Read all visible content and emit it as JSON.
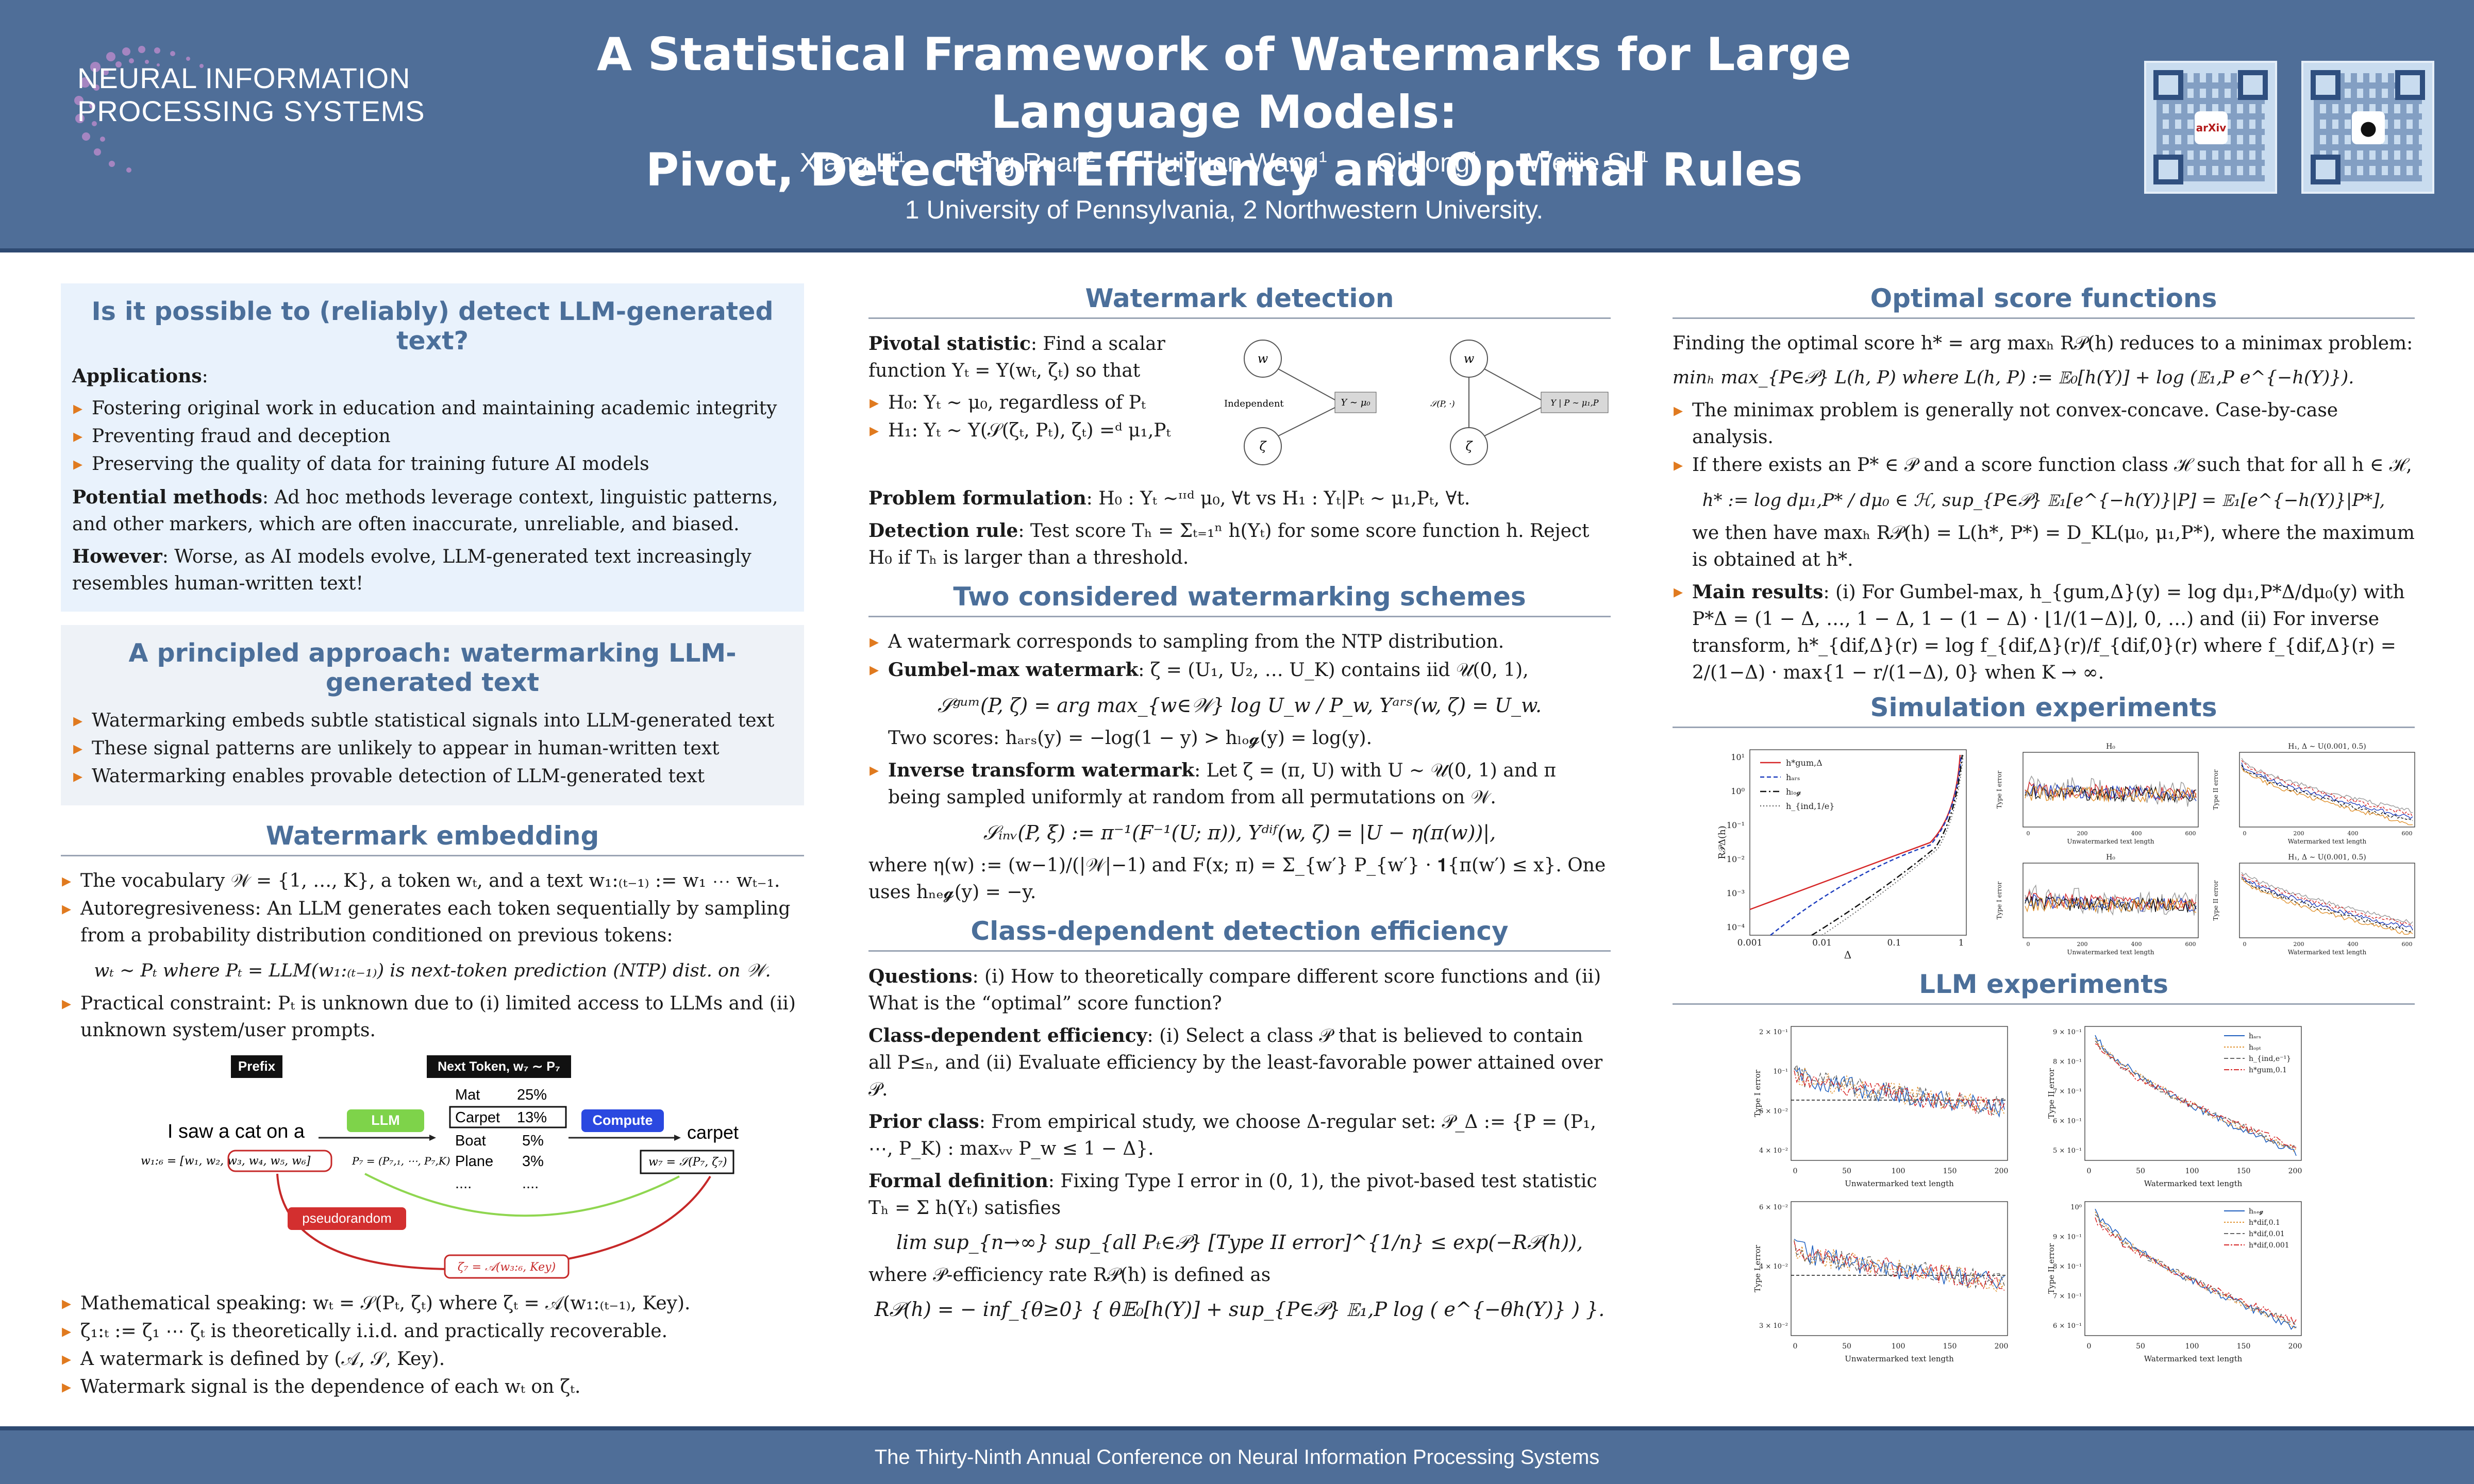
{
  "header": {
    "logo_line1": "NEURAL INFORMATION",
    "logo_line2": "PROCESSING SYSTEMS",
    "title_line1": "A Statistical Framework of Watermarks for Large Language Models:",
    "title_line2": "Pivot, Detection Efficiency and Optimal Rules",
    "authors": [
      {
        "name": "Xiang Li",
        "aff": "1"
      },
      {
        "name": "Feng Ruan",
        "aff": "2"
      },
      {
        "name": "Huiyuan Wang",
        "aff": "1"
      },
      {
        "name": "Qi Long",
        "aff": "1"
      },
      {
        "name": "Weijie Su",
        "aff": "1"
      }
    ],
    "affiliations": "1 University of Pennsylvania, 2 Northwestern University.",
    "qr_arxiv_label": "arXiv",
    "qr_github_label": "GitHub"
  },
  "col1": {
    "box1_title": "Is it possible to (reliably) detect LLM-generated text?",
    "applications_label": "Applications",
    "applications": [
      "Fostering original work in education and maintaining academic integrity",
      "Preventing fraud and deception",
      "Preserving the quality of data for training future AI models"
    ],
    "potential_label": "Potential methods",
    "potential_text": ": Ad hoc methods leverage context, linguistic patterns, and other markers, which are often inaccurate, unreliable, and biased.",
    "however_label": "However",
    "however_text": ": Worse, as AI models evolve, LLM-generated text increasingly resembles human-written text!",
    "box2_title": "A principled approach: watermarking LLM-generated text",
    "principled": [
      "Watermarking embeds subtle statistical signals into LLM-generated text",
      "These signal patterns are unlikely to appear in human-written text",
      "Watermarking enables provable detection of LLM-generated text"
    ],
    "embed_title": "Watermark embedding",
    "embed_items": [
      "The vocabulary 𝒲 = {1, …, K}, a token wₜ, and a text w₁:₍ₜ₋₁₎ := w₁ ⋯ wₜ₋₁.",
      "Autoregresiveness: An LLM generates each token sequentially by sampling from a probability distribution conditioned on previous tokens:",
      "Practical constraint: Pₜ is unknown due to (i) limited access to LLMs and (ii) unknown system/user prompts."
    ],
    "embed_eq": "wₜ ∼ Pₜ  where  Pₜ = LLM(w₁:₍ₜ₋₁₎) is next-token prediction (NTP) dist. on 𝒲.",
    "diagram": {
      "prefix": "Prefix",
      "next_token": "Next Token, w₇ ∼ P₇",
      "sentence": "I saw a cat on a",
      "llm": "LLM",
      "compute": "Compute",
      "output": "carpet",
      "pseudorandom": "pseudorandom",
      "tokens": [
        "Mat",
        "Carpet",
        "Boat",
        "Plane",
        "...."
      ],
      "probs": [
        "25%",
        "13%",
        "5%",
        "3%",
        "...."
      ],
      "context": "w₁:₆ = [w₁, w₂, w₃, w₄, w₅, w₆]",
      "ptext": "P₇ = (P₇,₁, ⋯, P₇,K)",
      "wformula": "w₇ = 𝒮(P₇, ζ₇)",
      "zeta": "ζ₇ = 𝒜(w₃:₆, Key)"
    },
    "math_items": [
      "Mathematical speaking: wₜ = 𝒮(Pₜ, ζₜ) where ζₜ = 𝒜(w₁:₍ₜ₋₁₎, Key).",
      "ζ₁:ₜ := ζ₁ ⋯ ζₜ is theoretically i.i.d. and practically recoverable.",
      "A watermark is defined by (𝒜, 𝒮, Key).",
      "Watermark signal is the dependence of each wₜ on ζₜ."
    ]
  },
  "col2": {
    "detect_title": "Watermark detection",
    "pivotal_label": "Pivotal statistic",
    "pivotal_text": ": Find a scalar function Yₜ = Y(wₜ, ζₜ) so that",
    "h0": "H₀: Yₜ ∼ μ₀, regardless of Pₜ",
    "h1": "H₁: Yₜ ∼ Y(𝒮(ζₜ, Pₜ), ζₜ) =ᵈ μ₁,Pₜ",
    "graph_independent": "Independent",
    "graph_y0": "Y ∼ μ₀",
    "graph_y1": "Y | P ∼ μ₁,P",
    "graph_s": "𝒮(P, ·)",
    "graph_w": "w",
    "graph_z": "ζ",
    "problem_label": "Problem formulation",
    "problem_text": ": H₀ : Yₜ ∼ᶦᶦᵈ μ₀, ∀t vs H₁ : Yₜ|Pₜ ∼ μ₁,Pₜ, ∀t.",
    "rule_label": "Detection rule",
    "rule_text": ": Test score Tₕ = Σₜ₌₁ⁿ h(Yₜ) for some score function h. Reject H₀ if Tₕ is larger than a threshold.",
    "schemes_title": "Two considered watermarking schemes",
    "schemes_intro": "A watermark corresponds to sampling from the NTP distribution.",
    "gumbel_label": "Gumbel-max watermark",
    "gumbel_text": ": ζ = (U₁, U₂, … U_K) contains iid 𝒰(0, 1),",
    "gumbel_eq": "𝒮ᵍᵘᵐ(P, ζ) = arg max_{w∈𝒲} log U_w / P_w,   Yᵃʳˢ(w, ζ) = U_w.",
    "two_scores": "Two scores:  hₐᵣₛ(y) = −log(1 − y) > hₗₒ𝓰(y) = log(y).",
    "inverse_label": "Inverse transform watermark",
    "inverse_text": ": Let ζ = (π, U) with U ∼ 𝒰(0, 1) and π being sampled uniformly at random from all permutations on 𝒲.",
    "inverse_eq": "𝒮ᵢₙᵥ(P, ξ) := π⁻¹(F⁻¹(U; π)),   Yᵈⁱᶠ(w, ζ) = |U − η(π(w))|,",
    "inverse_where": "where η(w) := (w−1)/(|𝒲|−1) and F(x; π) = Σ_{w′} P_{w′} · 𝟏{π(w′) ≤ x}. One uses hₙₑ𝓰(y) = −y.",
    "class_title": "Class-dependent detection efficiency",
    "questions_label": "Questions",
    "questions_text": ": (i) How to theoretically compare different score functions and (ii) What is the “optimal” score function?",
    "classdep_label": "Class-dependent efficiency",
    "classdep_text": ": (i) Select a class 𝒫 that is believed to contain all P≤ₙ, and (ii) Evaluate efficiency by the least-favorable power attained over 𝒫.",
    "prior_label": "Prior class",
    "prior_text": ": From empirical study, we choose Δ-regular set: 𝒫_Δ := {P = (P₁, ⋯, P_K) : maxᵥᵥ P_w ≤ 1 − Δ}.",
    "formal_label": "Formal definition",
    "formal_text": ": Fixing Type I error in (0, 1), the pivot-based test statistic Tₕ = Σ h(Yₜ) satisfies",
    "formal_eq": "lim sup_{n→∞} sup_{all Pₜ∈𝒫} [Type II error]^{1/n} ≤ exp(−R𝒫(h)),",
    "rate_text": "where 𝒫-efficiency rate R𝒫(h) is defined as",
    "rate_eq": "R𝒫(h) = − inf_{θ≥0} { θ𝔼₀[h(Y)] + sup_{P∈𝒫} 𝔼₁,P log ( e^{−θh(Y)} ) }."
  },
  "col3": {
    "optimal_title": "Optimal score functions",
    "optimal_intro": "Finding the optimal score h* = arg maxₕ R𝒫(h) reduces to a minimax problem:",
    "optimal_eq": "minₕ max_{P∈𝒫} L(h, P)  where  L(h, P) := 𝔼₀[h(Y)] + log (𝔼₁,P e^{−h(Y)}).",
    "opt_items": [
      "The minimax problem is generally not convex-concave. Case-by-case analysis.",
      "If there exists an P* ∈ 𝒫 and a score function class ℋ such that for all h ∈ ℋ,"
    ],
    "hstar_eq": "h* := log dμ₁,P* / dμ₀ ∈ ℋ,     sup_{P∈𝒫} 𝔼₁[e^{−h(Y)}|P] = 𝔼₁[e^{−h(Y)}|P*],",
    "then_text": "we then have maxₕ R𝒫(h) = L(h*, P*) = D_KL(μ₀, μ₁,P*), where the maximum is obtained at h*.",
    "main_label": "Main results",
    "main_text": ": (i) For Gumbel-max, h_{gum,Δ}(y) = log dμ₁,P*Δ/dμ₀(y) with P*Δ = (1 − Δ, …, 1 − Δ, 1 − (1 − Δ) · ⌊1/(1−Δ)⌋, 0, …) and (ii) For inverse transform, h*_{dif,Δ}(r) = log f_{dif,Δ}(r)/f_{dif,0}(r) where f_{dif,Δ}(r) = 2/(1−Δ) · max{1 − r/(1−Δ), 0} when K → ∞.",
    "sim_title": "Simulation experiments",
    "llm_title": "LLM experiments",
    "sim_labels": {
      "big_ylabel": "R𝒫Δ(h)",
      "big_xlabel": "Δ",
      "big_xticks": [
        "0.001",
        "0.01",
        "0.1",
        "1"
      ],
      "big_yticks": [
        "10¹",
        "10⁰",
        "10⁻¹",
        "10⁻²",
        "10⁻³",
        "10⁻⁴"
      ],
      "big_legend": [
        "h*gum,Δ",
        "hₐᵣₛ",
        "hₗₒ𝓰",
        "h_{ind,1/e}"
      ],
      "small_title_h0": "H₀",
      "small_title_h1": "H₁, Δ ∼ U(0.001, 0.5)",
      "small_ylabel1": "Type I error",
      "small_ylabel2": "Type II error",
      "small_xlabel": "Unwatermarked text length",
      "small_xlabel2": "Watermarked text length",
      "small_xticks": [
        "0",
        "200",
        "400",
        "600"
      ]
    },
    "llm_labels": {
      "ylabel1": "Type I error",
      "ylabel2": "Type II error",
      "xlabel1": "Unwatermarked text length",
      "xlabel2": "Watermarked text length",
      "xticks": [
        "0",
        "50",
        "100",
        "150",
        "200"
      ],
      "legend_top": [
        "hₐᵣₛ",
        "hₒₚₜ",
        "h_{ind,e⁻¹}",
        "h*gum,0.1"
      ],
      "legend_bottom": [
        "hₙₑ𝓰",
        "h*dif,0.1",
        "h*dif,0.01",
        "h*dif,0.001"
      ],
      "yticks_tl": [
        "2 × 10⁻¹",
        "10⁻¹",
        "6 × 10⁻²",
        "4 × 10⁻²"
      ],
      "yticks_tr": [
        "9 × 10⁻¹",
        "8 × 10⁻¹",
        "7 × 10⁻¹",
        "6 × 10⁻¹",
        "5 × 10⁻¹"
      ],
      "yticks_bl": [
        "6 × 10⁻²",
        "4 × 10⁻²",
        "3 × 10⁻²"
      ],
      "yticks_br": [
        "10⁰",
        "9 × 10⁻¹",
        "8 × 10⁻¹",
        "7 × 10⁻¹",
        "6 × 10⁻¹"
      ]
    }
  },
  "footer": {
    "text": "The Thirty-Ninth Annual Conference on Neural Information Processing Systems"
  },
  "colors": {
    "header_bg": "#4f6e98",
    "section_title": "#4b6f9a",
    "box_bg": "#e9f2fc",
    "bullet": "#e07a1f"
  }
}
